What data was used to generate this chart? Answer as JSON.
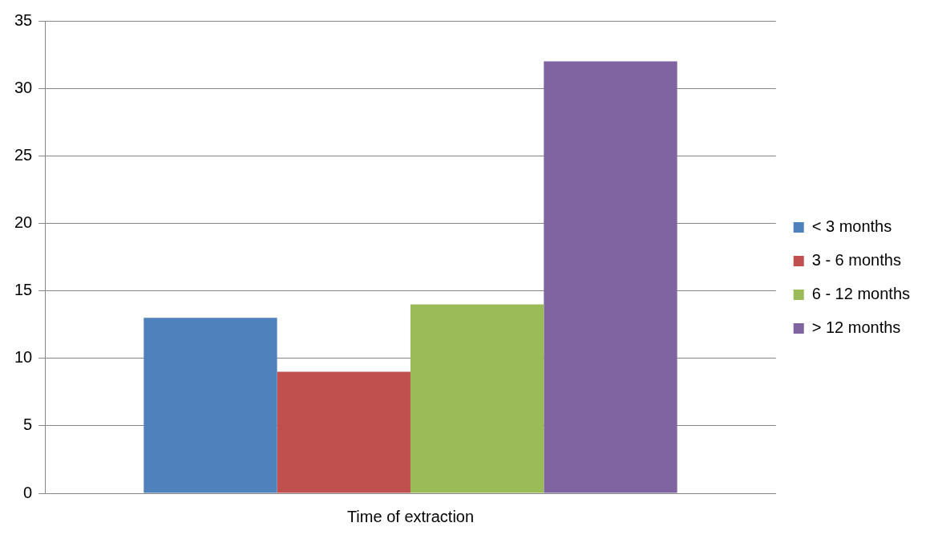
{
  "chart_data": {
    "type": "bar",
    "categories": [
      "Time of extraction"
    ],
    "series": [
      {
        "name": "< 3 months",
        "color": "#4f81bd",
        "values": [
          13
        ]
      },
      {
        "name": "3 - 6 months",
        "color": "#c0504d",
        "values": [
          9
        ]
      },
      {
        "name": "6 - 12 months",
        "color": "#9bbb59",
        "values": [
          14
        ]
      },
      {
        "name": "> 12 months",
        "color": "#8064a2",
        "values": [
          32
        ]
      }
    ],
    "ylim": [
      0,
      35
    ],
    "yticks": [
      0,
      5,
      10,
      15,
      20,
      25,
      30,
      35
    ],
    "grid": "y",
    "legend": "right"
  }
}
